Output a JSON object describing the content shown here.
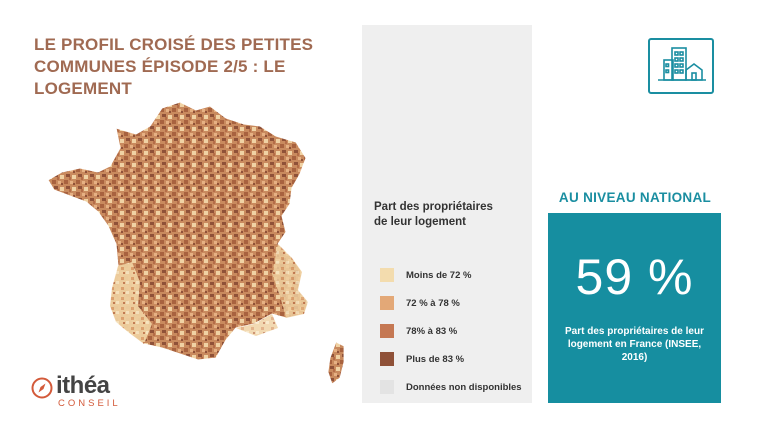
{
  "title": "LE PROFIL CROISÉ DES PETITES COMMUNES ÉPISODE 2/5  : LE LOGEMENT",
  "legend": {
    "title": "Part des propriétaires de leur logement",
    "items": [
      {
        "label": "Moins de 72 %",
        "color": "#f3dcae"
      },
      {
        "label": "72 % à 78 %",
        "color": "#e3a877"
      },
      {
        "label": "78% à 83 %",
        "color": "#c57853"
      },
      {
        "label": "Plus de 83 %",
        "color": "#8f5138"
      },
      {
        "label": "Données non disponibles",
        "color": "#e3e3e3"
      }
    ]
  },
  "national": {
    "heading": "AU NIVEAU NATIONAL",
    "value": "59 %",
    "description": "Part des propriétaires de leur logement en France (INSEE, 2016)"
  },
  "logo": {
    "name": "ithéa",
    "subtitle": "CONSEIL"
  },
  "colors": {
    "title": "#a06a52",
    "accent": "#168ea0",
    "logo_red": "#d35a3a"
  },
  "icons": [
    "buildings-icon",
    "compass-icon"
  ]
}
